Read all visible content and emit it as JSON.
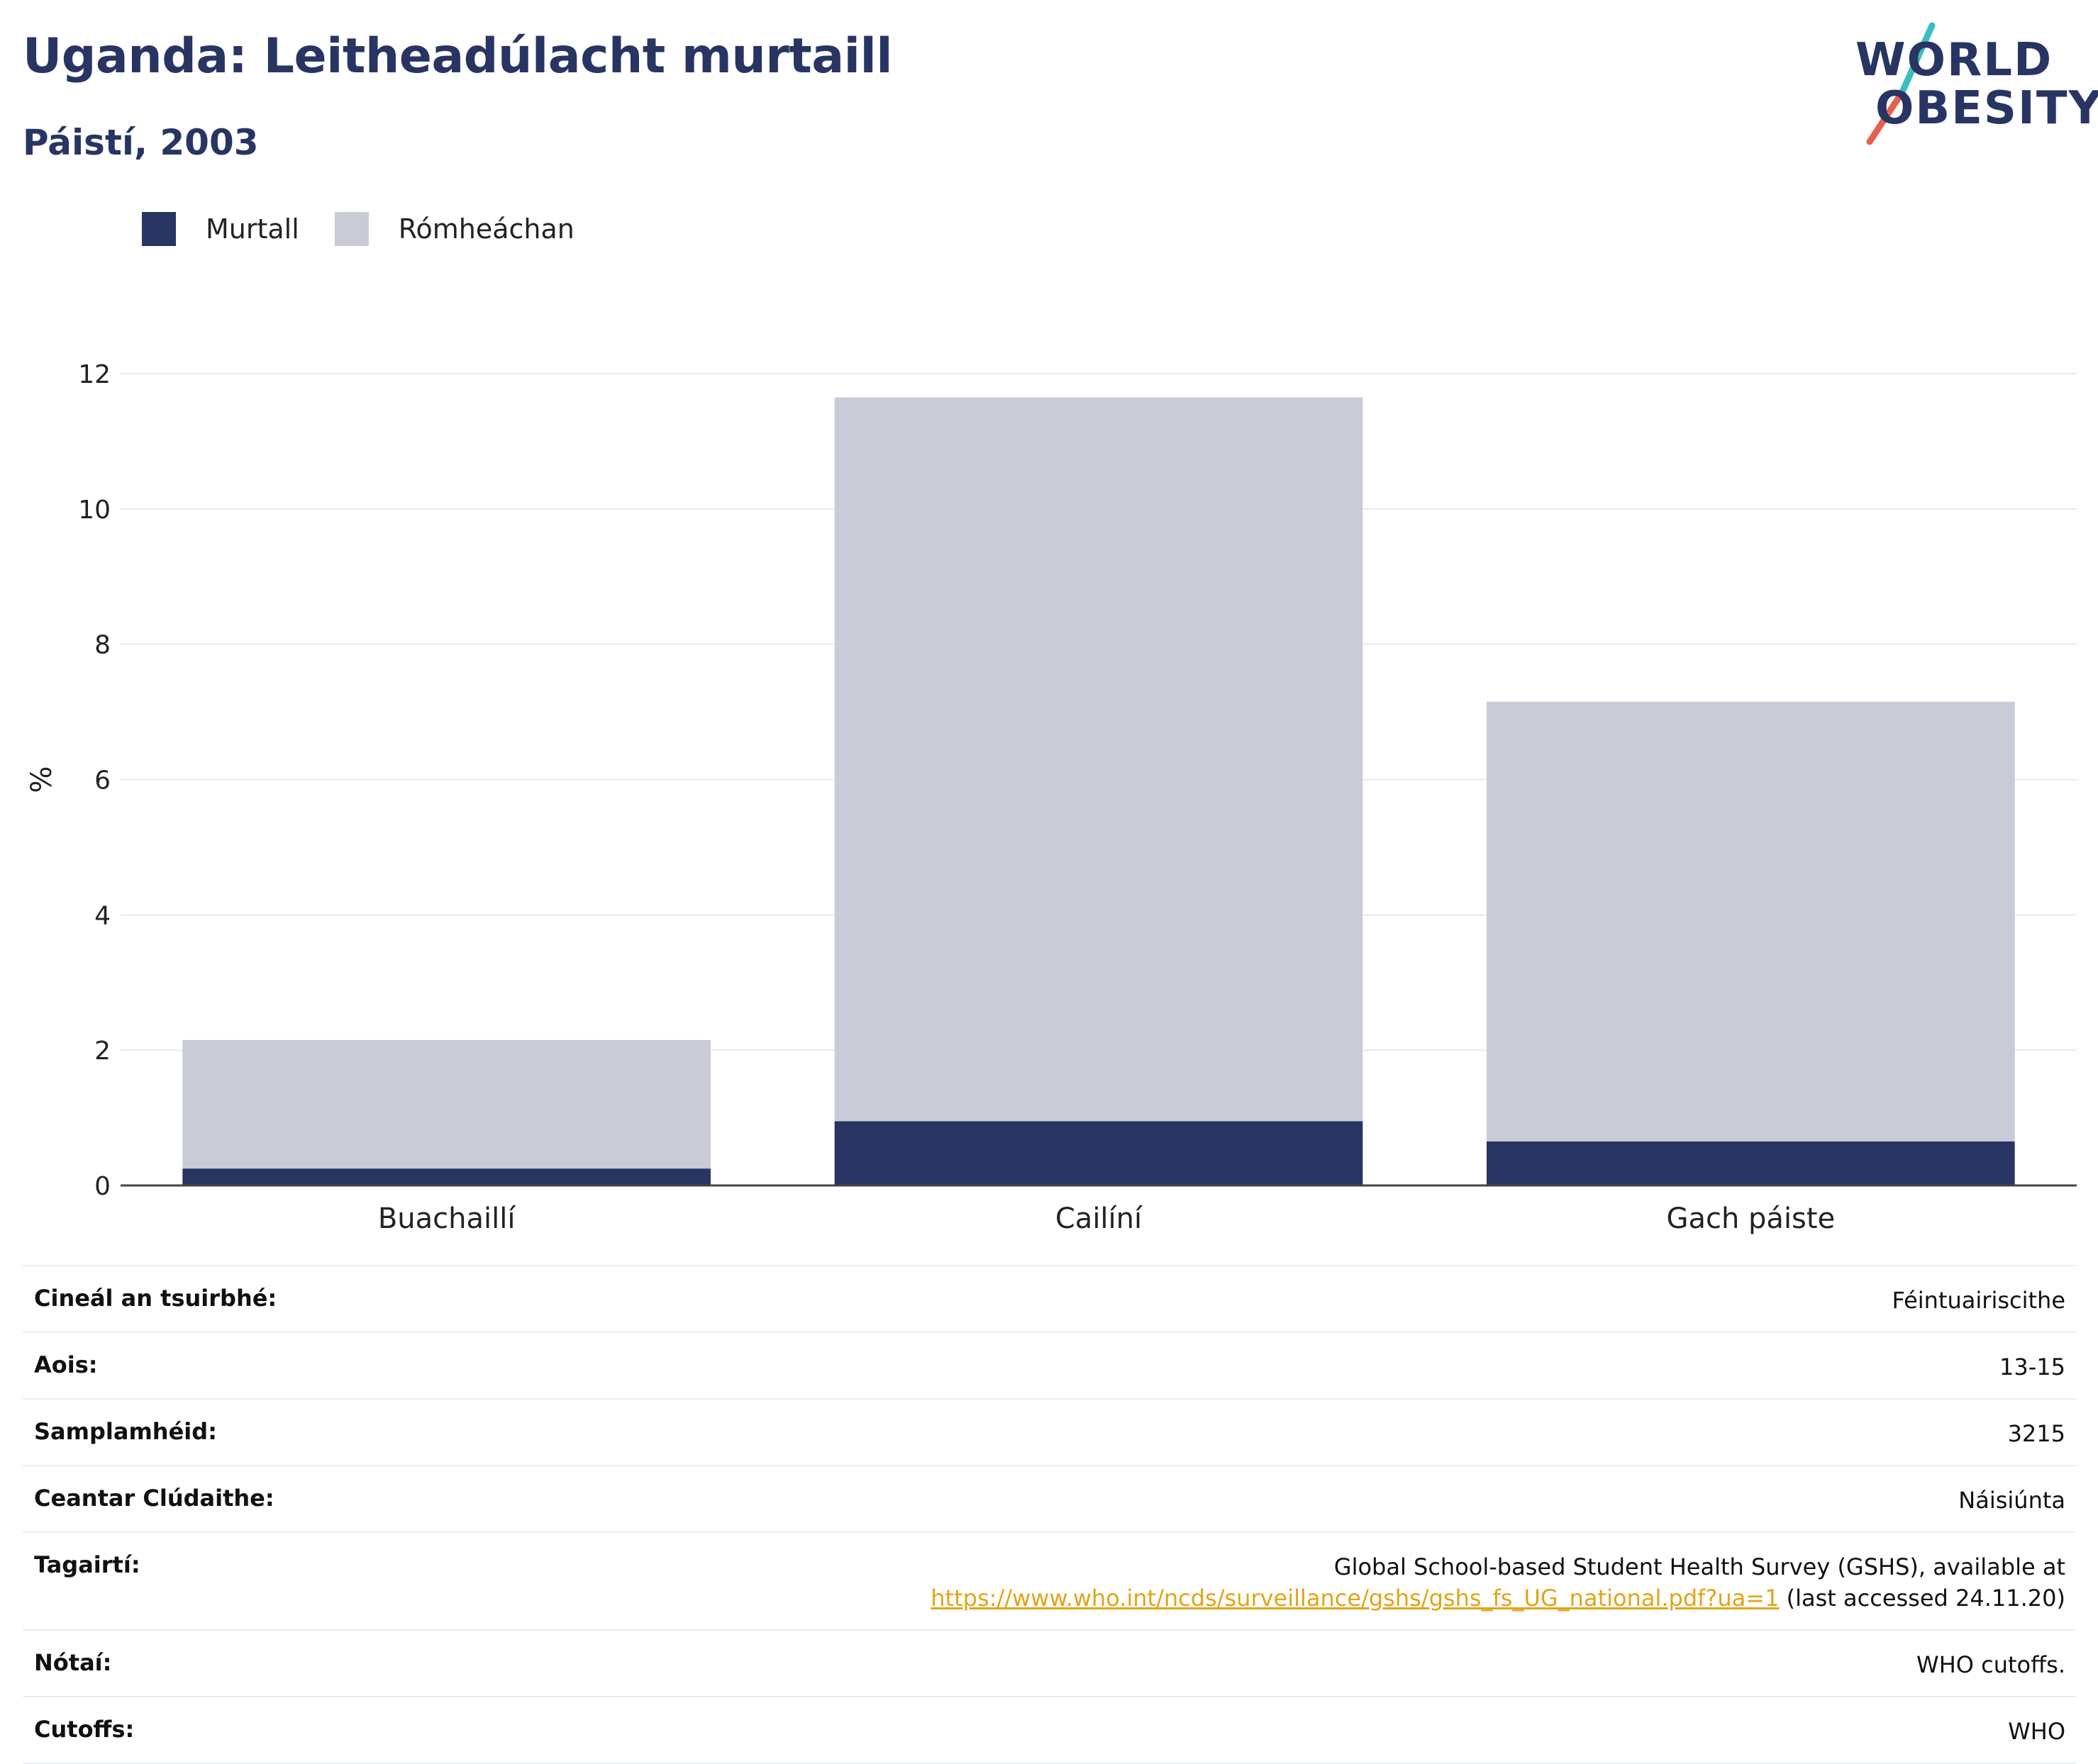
{
  "header": {
    "title": "Uganda: Leitheadúlacht murtaill",
    "subtitle": "Páistí, 2003"
  },
  "logo": {
    "line1": "WORLD",
    "line2": "OBESITY",
    "text_color": "#283462",
    "slash_colors": [
      "#e8604c",
      "#3dbdbf"
    ]
  },
  "legend": {
    "items": [
      {
        "label": "Murtall",
        "color": "#283462"
      },
      {
        "label": "Rómheáchan",
        "color": "#c9cbd6"
      }
    ]
  },
  "chart_data": {
    "type": "bar",
    "stacked": true,
    "categories": [
      "Buachaillí",
      "Cailíní",
      "Gach páiste"
    ],
    "series": [
      {
        "name": "Murtall",
        "color": "#283462",
        "values": [
          0.25,
          0.95,
          0.65
        ]
      },
      {
        "name": "Rómheáchan",
        "color": "#c9cbd6",
        "values": [
          1.9,
          10.7,
          6.5
        ]
      }
    ],
    "ylabel": "%",
    "ylim": [
      0,
      12
    ],
    "yticks": [
      0,
      2,
      4,
      6,
      8,
      10,
      12
    ],
    "grid": true
  },
  "info": {
    "rows": [
      {
        "key": "Cineál an tsuirbhé:",
        "value": "Féintuairiscithe"
      },
      {
        "key": "Aois:",
        "value": "13-15"
      },
      {
        "key": "Samplamhéid:",
        "value": "3215"
      },
      {
        "key": "Ceantar Clúdaithe:",
        "value": "Náisiúnta"
      }
    ],
    "reference": {
      "key": "Tagairtí:",
      "line1": "Global School-based Student Health Survey (GSHS), available at",
      "link": "https://www.who.int/ncds/surveillance/gshs/gshs_fs_UG_national.pdf?ua=1",
      "suffix": "(last accessed 24.11.20)"
    },
    "rows_after": [
      {
        "key": "Nótaí:",
        "value": "WHO cutoffs."
      },
      {
        "key": "Cutoffs:",
        "value": "WHO"
      }
    ]
  }
}
